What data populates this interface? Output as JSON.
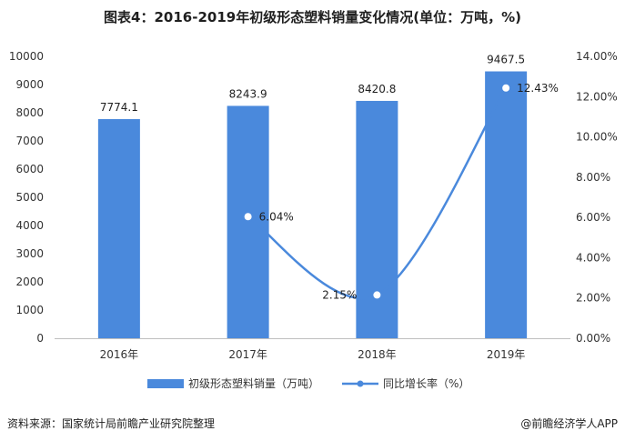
{
  "title": "图表4：2016-2019年初级形态塑料销量变化情况(单位：万吨，%)",
  "source": "资料来源：国家统计局前瞻产业研究院整理",
  "brand": "@前瞻经济学人APP",
  "colors": {
    "bar": "#4a89dc",
    "line": "#4a89dc",
    "grid": "#e3e3e3"
  },
  "chart_data": {
    "type": "bar",
    "categories": [
      "2016年",
      "2017年",
      "2018年",
      "2019年"
    ],
    "series": [
      {
        "name": "初级形态塑料销量（万吨）",
        "type": "bar",
        "axis": "left",
        "values": [
          7774.1,
          8243.9,
          8420.8,
          9467.5
        ],
        "labels": [
          "7774.1",
          "8243.9",
          "8420.8",
          "9467.5"
        ]
      },
      {
        "name": "同比增长率（%）",
        "type": "line",
        "axis": "right",
        "smooth": true,
        "values": [
          null,
          6.04,
          2.15,
          12.43
        ],
        "labels": [
          "",
          "6.04%",
          "2.15%",
          "12.43%"
        ]
      }
    ],
    "y_left": {
      "lim": [
        0,
        10000
      ],
      "ticks": [
        "0",
        "1000",
        "2000",
        "3000",
        "4000",
        "5000",
        "6000",
        "7000",
        "8000",
        "9000",
        "10000"
      ]
    },
    "y_right": {
      "lim": [
        0,
        14
      ],
      "ticks": [
        "0.00%",
        "2.00%",
        "4.00%",
        "6.00%",
        "8.00%",
        "10.00%",
        "12.00%",
        "14.00%"
      ]
    },
    "grid": false,
    "legend_position": "bottom-center"
  }
}
